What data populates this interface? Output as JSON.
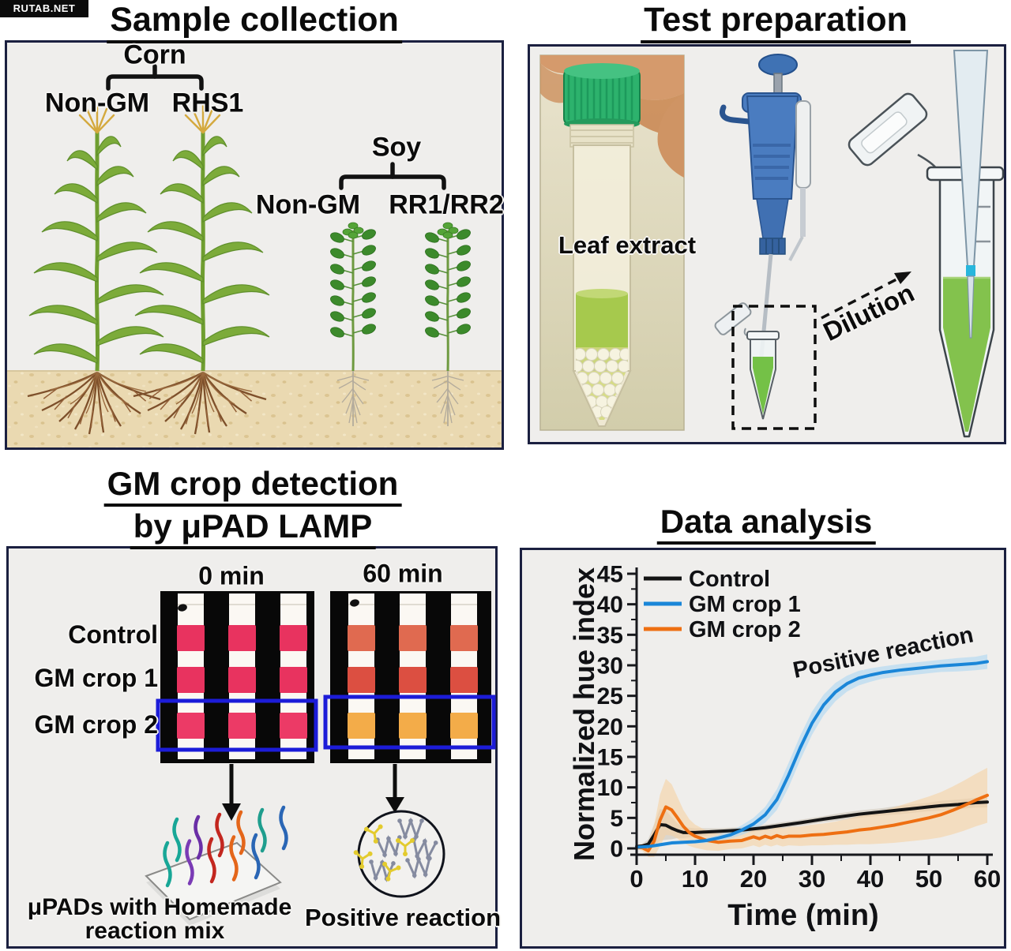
{
  "watermark": "RUTAB.NET",
  "panels": {
    "sample_collection": {
      "title": "Sample collection",
      "corn": {
        "group": "Corn",
        "left": "Non-GM",
        "right": "RHS1"
      },
      "soy": {
        "group": "Soy",
        "left": "Non-GM",
        "right": "RR1/RR2"
      }
    },
    "test_preparation": {
      "title": "Test preparation",
      "photo_label": "Leaf extract",
      "arrow_label": "Dilution"
    },
    "detection": {
      "title_line1": "GM crop detection",
      "title_line2": "by μPAD LAMP",
      "timepoints": [
        {
          "label": "0 min",
          "row_colors": [
            "#e8335f",
            "#e8335f",
            "#ec3a66"
          ]
        },
        {
          "label": "60 min",
          "row_colors": [
            "#e06a50",
            "#dc4f41",
            "#f3ac49"
          ]
        }
      ],
      "row_labels": [
        "Control",
        "GM crop 1",
        "GM crop 2"
      ],
      "highlight_color": "#1c1cd8",
      "caption_left_line1": "μPADs with Homemade",
      "caption_left_line2": "reaction mix",
      "caption_right": "Positive reaction"
    },
    "data_analysis": {
      "title": "Data analysis"
    }
  },
  "chart_data": {
    "type": "line",
    "title": "",
    "xlabel": "Time (min)",
    "ylabel": "Normalized hue index",
    "xlim": [
      0,
      60
    ],
    "ylim": [
      0,
      45
    ],
    "xticks": [
      0,
      10,
      20,
      30,
      40,
      50,
      60
    ],
    "yticks": [
      0,
      5,
      10,
      15,
      20,
      25,
      30,
      35,
      40,
      45
    ],
    "grid": false,
    "legend_position": "top-left",
    "annotation": "Positive reaction",
    "series": [
      {
        "name": "Control",
        "color": "#141414",
        "band_fill": "#cfc7ba",
        "x": [
          0,
          1,
          2,
          3,
          4,
          5,
          6,
          7,
          8,
          10,
          12,
          14,
          16,
          18,
          20,
          22,
          25,
          28,
          30,
          32,
          35,
          38,
          40,
          42,
          45,
          48,
          50,
          52,
          55,
          58,
          60
        ],
        "y": [
          0.3,
          0.4,
          0.7,
          2.2,
          3.9,
          3.8,
          3.3,
          2.9,
          2.6,
          2.6,
          2.7,
          2.8,
          2.9,
          3.0,
          3.2,
          3.4,
          3.8,
          4.2,
          4.5,
          4.8,
          5.2,
          5.6,
          5.8,
          6.0,
          6.3,
          6.6,
          6.8,
          7.0,
          7.2,
          7.5,
          7.6
        ],
        "band": [
          0.3,
          0.4,
          0.8,
          1.8,
          2.6,
          2.4,
          1.8,
          1.2,
          0.9,
          0.7,
          0.6,
          0.5,
          0.5,
          0.5,
          0.5,
          0.5,
          0.5,
          0.5,
          0.5,
          0.5,
          0.6,
          0.6,
          0.6,
          0.6,
          0.7,
          0.7,
          0.7,
          0.8,
          0.8,
          0.8,
          0.9
        ]
      },
      {
        "name": "GM crop 2",
        "color": "#ee6f12",
        "band_fill": "#f6d2a4",
        "x": [
          0,
          1,
          2,
          3,
          4,
          5,
          6,
          7,
          8,
          9,
          10,
          12,
          14,
          16,
          18,
          20,
          21,
          22,
          23,
          24,
          25,
          26,
          28,
          30,
          32,
          34,
          36,
          38,
          40,
          42,
          44,
          46,
          48,
          50,
          52,
          54,
          56,
          58,
          60
        ],
        "y": [
          0.2,
          0.1,
          -0.4,
          1.2,
          4.6,
          6.8,
          6.3,
          5.0,
          3.6,
          2.6,
          2.0,
          1.3,
          1.0,
          1.2,
          1.3,
          1.9,
          1.6,
          2.0,
          1.7,
          2.1,
          1.8,
          2.0,
          2.0,
          2.2,
          2.3,
          2.5,
          2.7,
          3.0,
          3.2,
          3.5,
          3.8,
          4.2,
          4.6,
          5.0,
          5.5,
          6.2,
          7.0,
          7.9,
          8.7
        ],
        "band": [
          0.3,
          0.5,
          1.0,
          2.6,
          4.2,
          4.6,
          4.2,
          3.4,
          2.7,
          2.2,
          1.9,
          1.6,
          1.4,
          1.3,
          1.3,
          1.4,
          1.4,
          1.4,
          1.4,
          1.5,
          1.5,
          1.5,
          1.6,
          1.7,
          1.8,
          1.9,
          2.1,
          2.3,
          2.5,
          2.7,
          2.9,
          3.1,
          3.3,
          3.5,
          3.7,
          3.9,
          4.1,
          4.3,
          4.5
        ]
      },
      {
        "name": "GM crop 1",
        "color": "#1a86d8",
        "band_fill": "#aed6f2",
        "x": [
          0,
          2,
          4,
          6,
          8,
          10,
          12,
          14,
          16,
          18,
          20,
          22,
          24,
          26,
          28,
          30,
          32,
          34,
          36,
          38,
          40,
          42,
          45,
          48,
          50,
          52,
          55,
          58,
          60
        ],
        "y": [
          0.2,
          0.3,
          0.6,
          0.9,
          1.0,
          1.1,
          1.3,
          1.7,
          2.2,
          3.0,
          4.0,
          5.5,
          8.0,
          12.0,
          16.5,
          20.5,
          23.5,
          25.6,
          27.0,
          27.9,
          28.4,
          28.8,
          29.2,
          29.5,
          29.7,
          29.9,
          30.1,
          30.3,
          30.6
        ],
        "band": [
          0.2,
          0.2,
          0.3,
          0.3,
          0.3,
          0.3,
          0.4,
          0.5,
          0.6,
          0.8,
          1.0,
          1.3,
          1.7,
          2.0,
          2.0,
          1.9,
          1.7,
          1.5,
          1.3,
          1.2,
          1.1,
          1.0,
          1.0,
          1.0,
          1.0,
          1.0,
          1.1,
          1.1,
          1.2
        ]
      }
    ],
    "legend_order": [
      "Control",
      "GM crop 1",
      "GM crop 2"
    ]
  }
}
